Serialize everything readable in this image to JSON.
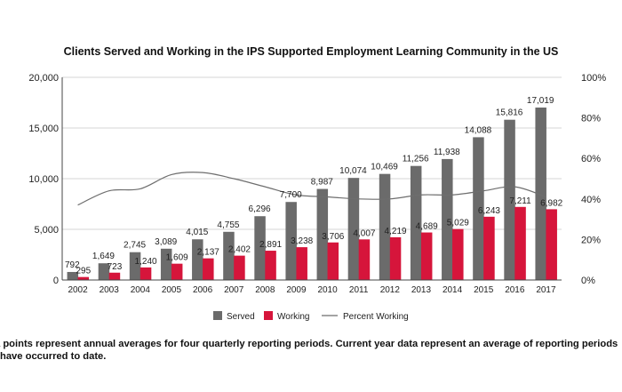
{
  "chart_data": {
    "type": "bar",
    "title": "Clients Served and Working in the IPS Supported Employment Learning Community in the US",
    "categories": [
      "2002",
      "2003",
      "2004",
      "2005",
      "2006",
      "2007",
      "2008",
      "2009",
      "2010",
      "2011",
      "2012",
      "2013",
      "2014",
      "2015",
      "2016",
      "2017"
    ],
    "series": [
      {
        "name": "Served",
        "type": "bar",
        "color": "#6b6b6b",
        "values": [
          792,
          1649,
          2745,
          3089,
          4015,
          4755,
          6296,
          7700,
          8987,
          10074,
          10469,
          11256,
          11938,
          14088,
          15816,
          17019
        ]
      },
      {
        "name": "Working",
        "type": "bar",
        "color": "#d6153b",
        "values": [
          295,
          723,
          1240,
          1609,
          2137,
          2402,
          2891,
          3238,
          3706,
          4007,
          4219,
          4689,
          5029,
          6243,
          7211,
          6982
        ]
      },
      {
        "name": "Percent Working",
        "type": "line",
        "axis": "right",
        "color": "#6e6e6e",
        "values": [
          37,
          44,
          45,
          52,
          53,
          50,
          46,
          42,
          41,
          40,
          40,
          42,
          42,
          44,
          46,
          41
        ]
      }
    ],
    "ylim": [
      0,
      20000
    ],
    "y_ticks": [
      "0",
      "5,000",
      "10,000",
      "15,000",
      "20,000"
    ],
    "y2lim": [
      0,
      100
    ],
    "y2_ticks": [
      "0%",
      "20%",
      "40%",
      "60%",
      "80%",
      "100%"
    ],
    "grid": true,
    "legend_position": "bottom"
  },
  "footnote": {
    "line1": "a points represent annual averages for four quarterly reporting periods. Current year data represent an average of reporting periods",
    "line2": "have occurred to date."
  }
}
